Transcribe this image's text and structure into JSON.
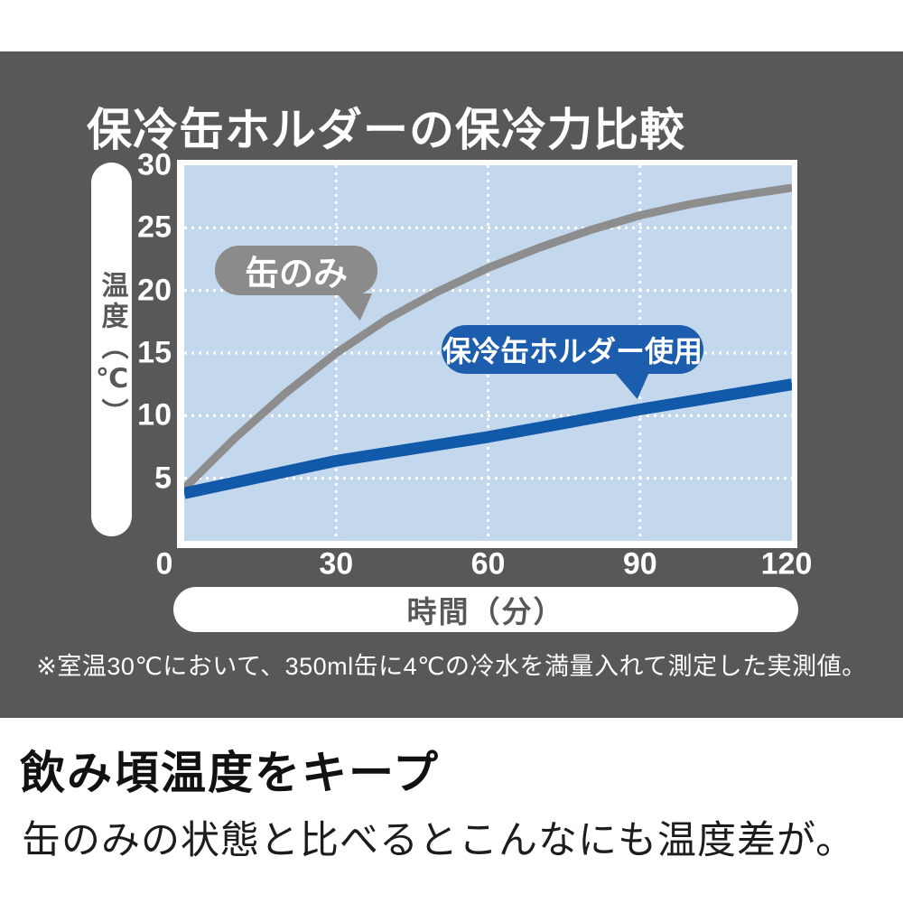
{
  "title": "保冷缶ホルダーの保冷力比較",
  "colors": {
    "panel_background": "#595757",
    "plot_background": "#c4d8ed",
    "grid": "#ffffff",
    "series_can_only": "#8d8d8d",
    "series_holder": "#1159a9",
    "badge_can_only": "#8b8b8b",
    "badge_holder": "#1d5dad"
  },
  "chart_data": {
    "type": "line",
    "title": "保冷缶ホルダーの保冷力比較",
    "xlabel": "時間（分）",
    "ylabel": "温度（℃）",
    "xlim": [
      0,
      120
    ],
    "ylim": [
      0,
      30
    ],
    "x_ticks": [
      0,
      30,
      60,
      90,
      120
    ],
    "y_ticks": [
      5,
      10,
      15,
      20,
      25,
      30
    ],
    "grid": {
      "style": "dotted",
      "color": "#ffffff",
      "x_lines": [
        30,
        60,
        90
      ],
      "y_lines": [
        5,
        10,
        15,
        20,
        25
      ]
    },
    "legend_position": "inline-badges",
    "series": [
      {
        "name": "缶のみ",
        "color": "#8d8d8d",
        "width": 9,
        "points": [
          [
            0,
            4.2
          ],
          [
            10,
            8.2
          ],
          [
            20,
            11.8
          ],
          [
            30,
            15
          ],
          [
            40,
            17.7
          ],
          [
            50,
            19.9
          ],
          [
            60,
            21.8
          ],
          [
            70,
            23.4
          ],
          [
            80,
            24.8
          ],
          [
            90,
            26
          ],
          [
            100,
            26.9
          ],
          [
            110,
            27.6
          ],
          [
            120,
            28.2
          ]
        ]
      },
      {
        "name": "保冷缶ホルダー使用",
        "color": "#1159a9",
        "width": 13,
        "points": [
          [
            0,
            3.8
          ],
          [
            30,
            6.4
          ],
          [
            60,
            8.3
          ],
          [
            90,
            10.5
          ],
          [
            120,
            12.5
          ]
        ]
      }
    ],
    "badges": [
      {
        "label": "缶のみ",
        "color": "#8b8b8b"
      },
      {
        "label": "保冷缶ホルダー使用",
        "color": "#1d5dad"
      }
    ]
  },
  "footnote": "※室温30℃において、350ml缶に4℃の冷水を満量入れて測定した実測値。",
  "bottom": {
    "headline": "飲み頃温度をキープ",
    "body": "缶のみの状態と比べるとこんなにも温度差が。"
  }
}
